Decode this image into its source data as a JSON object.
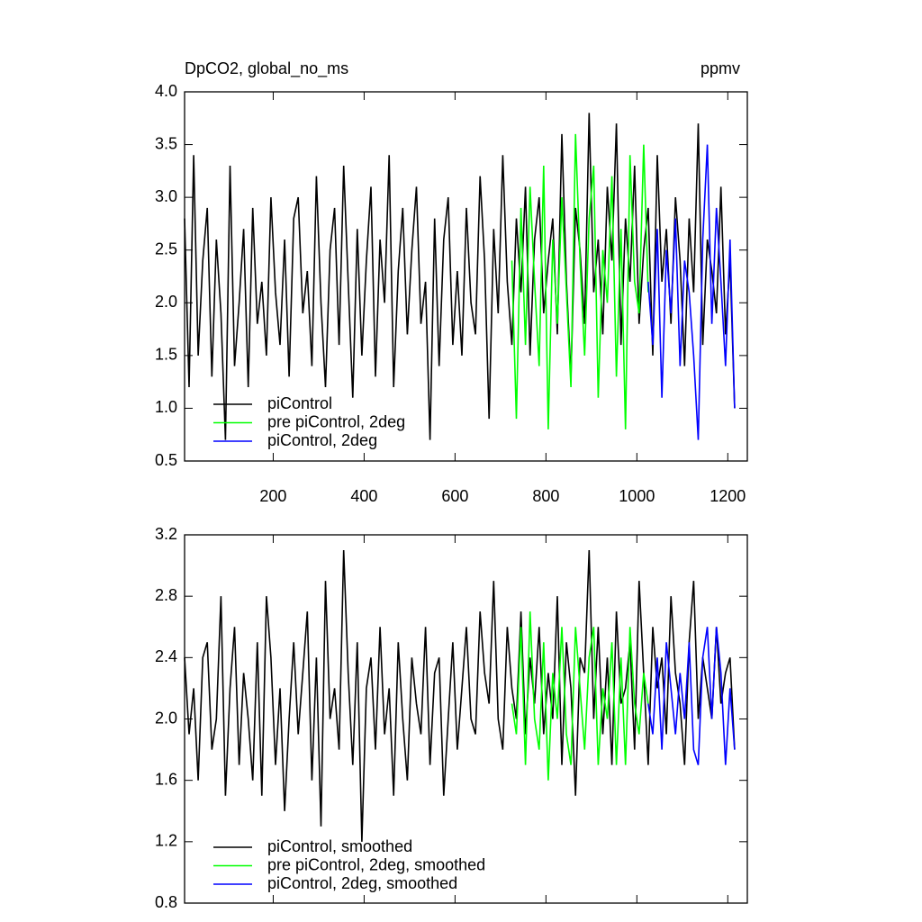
{
  "chart_data": [
    {
      "type": "line",
      "title": "DpCO2, global_no_ms",
      "units": "ppmv",
      "xlim": [
        5,
        1243
      ],
      "ylim": [
        0.5,
        4.0
      ],
      "xticks": [
        200,
        400,
        600,
        800,
        1000,
        1200
      ],
      "yticks": [
        0.5,
        {
          "value": 1,
          "label": "1.0"
        },
        1.5,
        {
          "value": 2,
          "label": "2.0"
        },
        2.5,
        {
          "value": 3,
          "label": "3.0"
        },
        3.5,
        {
          "value": 4,
          "label": "4.0"
        }
      ],
      "series": [
        {
          "name": "piControl",
          "color": "#000000",
          "x_start": 5,
          "x_step": 10,
          "values": [
            2.8,
            1.2,
            3.4,
            1.5,
            2.4,
            2.9,
            1.3,
            2.6,
            1.9,
            0.7,
            3.3,
            1.4,
            2.0,
            2.7,
            1.2,
            2.9,
            1.8,
            2.2,
            1.5,
            3.0,
            2.1,
            1.6,
            2.6,
            1.3,
            2.8,
            3.0,
            1.9,
            2.3,
            1.4,
            3.2,
            2.0,
            1.2,
            2.5,
            2.9,
            1.6,
            3.3,
            2.2,
            1.1,
            2.7,
            1.5,
            2.4,
            3.1,
            1.3,
            2.6,
            2.0,
            3.4,
            1.2,
            2.3,
            2.9,
            1.7,
            2.5,
            3.1,
            1.8,
            2.2,
            0.7,
            2.8,
            1.4,
            2.6,
            3.0,
            1.6,
            2.3,
            1.5,
            2.9,
            2.0,
            1.7,
            3.2,
            2.4,
            0.9,
            2.7,
            1.9,
            3.4,
            2.2,
            1.6,
            2.8,
            2.1,
            3.1,
            1.5,
            2.6,
            3.0,
            1.9,
            2.4,
            2.8,
            1.7,
            3.6,
            2.2,
            1.3,
            2.9,
            2.5,
            1.8,
            3.8,
            2.1,
            2.6,
            1.7,
            3.1,
            2.4,
            3.7,
            1.6,
            2.8,
            2.2,
            3.3,
            1.8,
            2.5,
            2.9,
            1.5,
            3.4,
            2.2,
            2.7,
            1.8,
            3.0,
            2.4,
            1.4,
            2.8,
            2.1,
            3.7,
            1.6,
            2.6,
            2.3,
            1.9,
            3.1,
            1.7,
            2.4,
            1.0
          ]
        },
        {
          "name": "pre piControl, 2deg",
          "color": "#00ff00",
          "x_start": 725,
          "x_step": 10,
          "values": [
            2.4,
            0.9,
            2.9,
            1.6,
            3.1,
            2.2,
            1.4,
            3.3,
            0.8,
            2.6,
            1.8,
            3.0,
            2.1,
            1.2,
            3.6,
            2.4,
            1.5,
            2.8,
            3.3,
            1.1,
            2.5,
            2.0,
            3.2,
            1.3,
            2.7,
            0.8,
            3.4,
            2.2,
            1.9,
            3.5,
            2.1
          ]
        },
        {
          "name": "piControl, 2deg",
          "color": "#0000ff",
          "x_start": 1025,
          "x_step": 10,
          "values": [
            2.2,
            1.6,
            2.7,
            1.1,
            2.5,
            1.9,
            2.8,
            1.4,
            2.4,
            2.1,
            1.5,
            0.7,
            2.6,
            3.5,
            1.8,
            2.9,
            2.2,
            1.4,
            2.6,
            1.0
          ]
        }
      ]
    },
    {
      "type": "line",
      "xlim": [
        5,
        1243
      ],
      "ylim": [
        0.8,
        3.2
      ],
      "yticks": [
        0.8,
        1.2,
        1.6,
        {
          "value": 2,
          "label": "2.0"
        },
        2.4,
        2.8,
        3.2
      ],
      "series": [
        {
          "name": "piControl, smoothed",
          "color": "#000000",
          "x_start": 5,
          "x_step": 10,
          "values": [
            2.4,
            1.9,
            2.2,
            1.6,
            2.4,
            2.5,
            1.8,
            2.0,
            2.8,
            1.5,
            2.2,
            2.6,
            1.7,
            2.3,
            2.0,
            1.6,
            2.5,
            1.5,
            2.8,
            2.4,
            1.7,
            2.2,
            1.4,
            2.0,
            2.5,
            1.9,
            2.3,
            2.7,
            1.6,
            2.4,
            1.3,
            2.9,
            2.0,
            2.2,
            1.8,
            3.1,
            2.3,
            1.7,
            2.5,
            1.2,
            2.2,
            2.4,
            1.8,
            2.6,
            1.9,
            2.2,
            1.5,
            2.5,
            2.0,
            1.6,
            2.4,
            2.1,
            1.9,
            2.6,
            1.7,
            2.3,
            2.4,
            1.5,
            2.0,
            2.5,
            1.8,
            2.2,
            2.6,
            2.0,
            1.9,
            2.7,
            2.3,
            2.1,
            2.9,
            2.0,
            1.8,
            2.6,
            2.2,
            2.0,
            2.7,
            1.9,
            2.4,
            2.1,
            2.6,
            1.9,
            2.3,
            2.0,
            2.8,
            1.7,
            2.5,
            2.2,
            1.5,
            2.4,
            2.3,
            3.1,
            2.0,
            2.6,
            1.9,
            2.4,
            1.7,
            2.7,
            2.1,
            2.2,
            2.5,
            1.8,
            2.9,
            2.3,
            1.7,
            2.6,
            2.2,
            2.4,
            1.9,
            2.8,
            2.3,
            2.1,
            1.7,
            2.5,
            2.9,
            2.0,
            2.4,
            2.2,
            2.0,
            2.6,
            2.1,
            2.3,
            2.4,
            1.8
          ]
        },
        {
          "name": "pre piControl, 2deg, smoothed",
          "color": "#00ff00",
          "x_start": 725,
          "x_step": 10,
          "values": [
            2.1,
            1.9,
            2.6,
            1.7,
            2.7,
            2.0,
            1.8,
            2.5,
            1.6,
            2.3,
            2.0,
            2.6,
            1.9,
            1.7,
            2.6,
            2.2,
            1.8,
            2.4,
            2.6,
            1.7,
            2.2,
            2.0,
            2.5,
            1.7,
            2.4,
            1.7,
            2.6,
            2.1,
            1.9,
            2.3,
            2.1
          ]
        },
        {
          "name": "piControl, 2deg, smoothed",
          "color": "#0000ff",
          "x_start": 1025,
          "x_step": 10,
          "values": [
            2.1,
            1.9,
            2.4,
            1.8,
            2.5,
            2.2,
            1.9,
            2.3,
            2.0,
            2.5,
            1.8,
            1.7,
            2.4,
            2.6,
            2.0,
            2.6,
            2.3,
            1.7,
            2.2,
            1.8
          ]
        }
      ]
    }
  ]
}
